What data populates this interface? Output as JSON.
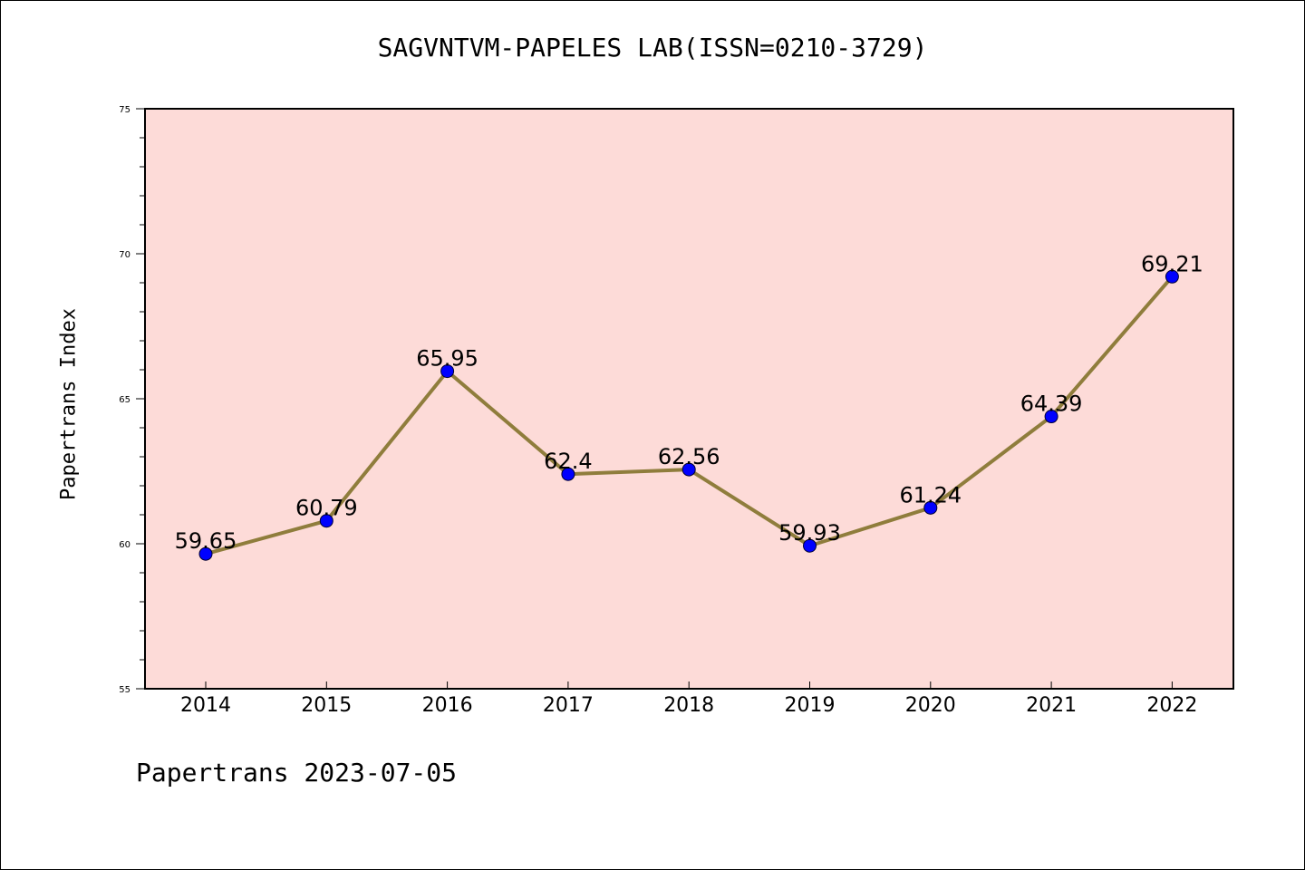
{
  "title": "SAGVNTVM-PAPELES LAB(ISSN=0210-3729)",
  "footer": "Papertrans 2023-07-05",
  "colors": {
    "plot_background": "#fddbd8",
    "line": "#8f7d3c",
    "marker": "#0000ff"
  },
  "chart_data": {
    "type": "line",
    "title": "SAGVNTVM-PAPELES LAB(ISSN=0210-3729)",
    "xlabel": "",
    "ylabel": "Papertrans Index",
    "categories": [
      "2014",
      "2015",
      "2016",
      "2017",
      "2018",
      "2019",
      "2020",
      "2021",
      "2022"
    ],
    "series": [
      {
        "values": [
          59.65,
          60.79,
          65.95,
          62.4,
          62.56,
          59.93,
          61.24,
          64.39,
          69.21
        ],
        "data_labels": [
          "59.65",
          "60.79",
          "65.95",
          "62.4",
          "62.56",
          "59.93",
          "61.24",
          "64.39",
          "69.21"
        ]
      }
    ],
    "ylim": [
      55,
      75
    ],
    "yticks": [
      55,
      60,
      65,
      70,
      75
    ],
    "grid": false,
    "legend": "none"
  }
}
